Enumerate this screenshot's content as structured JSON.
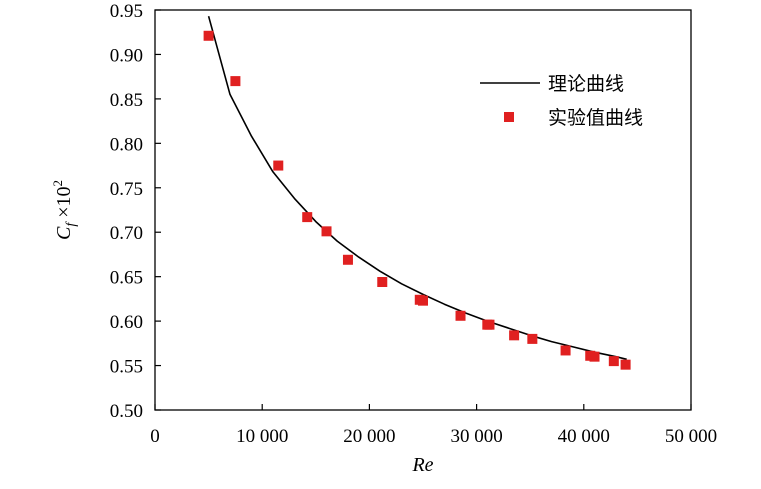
{
  "chart_data": {
    "type": "line",
    "xlabel": "Re",
    "ylabel": "C_f ×10²",
    "ylabel_parts": {
      "base": "C",
      "sub": "f",
      "mult": " ×10",
      "sup": "2"
    },
    "xlim": [
      0,
      50000
    ],
    "ylim": [
      0.5,
      0.95
    ],
    "x_ticks": [
      0,
      10000,
      20000,
      30000,
      40000,
      50000
    ],
    "x_tick_labels": [
      "0",
      "10 000",
      "20 000",
      "30 000",
      "40 000",
      "50 000"
    ],
    "y_ticks": [
      0.5,
      0.55,
      0.6,
      0.65,
      0.7,
      0.75,
      0.8,
      0.85,
      0.9,
      0.95
    ],
    "y_tick_labels": [
      "0.50",
      "0.55",
      "0.60",
      "0.65",
      "0.70",
      "0.75",
      "0.80",
      "0.85",
      "0.90",
      "0.95"
    ],
    "grid": false,
    "legend_position": "top-right",
    "series": [
      {
        "name": "理论曲线",
        "kind": "line",
        "color": "#000000",
        "x": [
          5000,
          7000,
          9000,
          11000,
          13000,
          15000,
          17000,
          19000,
          21000,
          23000,
          25000,
          27000,
          29000,
          31000,
          33000,
          35000,
          37000,
          39000,
          41000,
          43000,
          44000
        ],
        "y": [
          0.943,
          0.855,
          0.808,
          0.768,
          0.738,
          0.712,
          0.69,
          0.672,
          0.656,
          0.642,
          0.63,
          0.619,
          0.609,
          0.6,
          0.592,
          0.584,
          0.577,
          0.571,
          0.565,
          0.56,
          0.557
        ]
      },
      {
        "name": "实验值曲线",
        "kind": "scatter",
        "color": "#e02020",
        "x": [
          5000,
          7500,
          11500,
          14200,
          16000,
          18000,
          21200,
          24700,
          25000,
          28500,
          31000,
          31200,
          33500,
          35200,
          38300,
          40600,
          41000,
          42800,
          43900
        ],
        "y": [
          0.921,
          0.87,
          0.775,
          0.717,
          0.701,
          0.669,
          0.644,
          0.624,
          0.623,
          0.606,
          0.596,
          0.596,
          0.584,
          0.58,
          0.567,
          0.561,
          0.56,
          0.555,
          0.551
        ]
      }
    ]
  }
}
